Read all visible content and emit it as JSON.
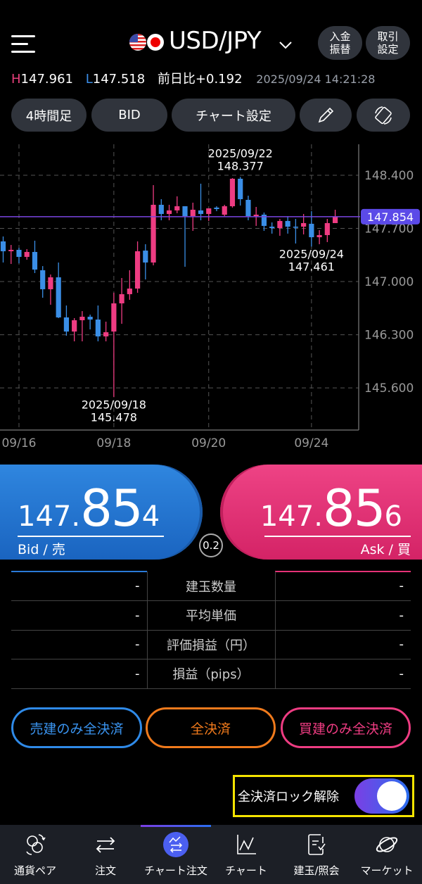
{
  "header": {
    "title": "USD/JPY",
    "deposit_label": "入金\n振替",
    "trade_settings_label": "取引\n設定",
    "flags": [
      "us-flag",
      "jp-flag"
    ]
  },
  "stats": {
    "high_label": "H",
    "high": "147.961",
    "low_label": "L",
    "low": "147.518",
    "change_label": "前日比",
    "change": "+0.192",
    "timestamp": "2025/09/24 14:21:28"
  },
  "toolbar": {
    "timeframe": "4時間足",
    "price_type": "BID",
    "chart_settings": "チャート設定",
    "draw_icon": "pencil-icon",
    "rotate_icon": "rotate-screen-icon"
  },
  "chart_data": {
    "type": "candlestick",
    "yticks": [
      "148.400",
      "147.700",
      "147.000",
      "146.300",
      "145.600"
    ],
    "ylim": [
      145.3,
      148.8
    ],
    "xticks": [
      {
        "index": 2,
        "label": "09/16"
      },
      {
        "index": 14,
        "label": "09/18"
      },
      {
        "index": 26,
        "label": "09/20"
      },
      {
        "index": 39,
        "label": "09/24"
      }
    ],
    "current_price": "147.854",
    "annotations": [
      {
        "index": 30,
        "date": "2025/09/22",
        "value": "148.377",
        "position": "above"
      },
      {
        "index": 14,
        "date": "2025/09/18",
        "value": "145.478",
        "position": "below"
      },
      {
        "index": 39,
        "date": "2025/09/24",
        "value": "147.461",
        "position": "below"
      }
    ],
    "colors": {
      "up": "#ee3c82",
      "down": "#3a8ee6",
      "current_line": "#7a45e0"
    },
    "ohlc": [
      [
        147.529,
        147.594,
        147.251,
        147.399
      ],
      [
        147.399,
        147.482,
        147.232,
        147.418
      ],
      [
        147.418,
        147.445,
        147.241,
        147.325
      ],
      [
        147.325,
        147.427,
        147.288,
        147.39
      ],
      [
        147.39,
        147.538,
        147.112,
        147.158
      ],
      [
        147.149,
        147.204,
        146.787,
        146.899
      ],
      [
        146.899,
        147.093,
        146.695,
        147.056
      ],
      [
        147.056,
        147.251,
        146.519,
        146.528
      ],
      [
        146.528,
        146.685,
        146.287,
        146.342
      ],
      [
        146.342,
        146.519,
        146.213,
        146.491
      ],
      [
        146.491,
        146.611,
        146.213,
        146.537
      ],
      [
        146.537,
        146.565,
        146.37,
        146.5
      ],
      [
        146.5,
        146.685,
        146.213,
        146.278
      ],
      [
        146.278,
        146.472,
        146.213,
        146.333
      ],
      [
        146.342,
        146.852,
        145.478,
        146.713
      ],
      [
        146.713,
        147.047,
        146.444,
        146.834
      ],
      [
        146.834,
        147.149,
        146.76,
        146.908
      ],
      [
        146.908,
        147.529,
        146.852,
        147.399
      ],
      [
        147.408,
        147.492,
        147.028,
        147.251
      ],
      [
        147.251,
        148.27,
        147.214,
        148.011
      ],
      [
        148.011,
        148.085,
        147.807,
        147.89
      ],
      [
        147.89,
        148.011,
        147.807,
        147.937
      ],
      [
        147.937,
        148.122,
        147.9,
        147.992
      ],
      [
        147.992,
        147.992,
        147.195,
        147.862
      ],
      [
        147.862,
        148.039,
        147.668,
        147.946
      ],
      [
        147.937,
        148.289,
        147.807,
        147.89
      ],
      [
        147.89,
        147.964,
        147.798,
        147.964
      ],
      [
        147.974,
        147.992,
        147.927,
        147.955
      ],
      [
        147.881,
        148.011,
        147.862,
        147.992
      ],
      [
        147.992,
        148.363,
        147.974,
        148.354
      ],
      [
        148.354,
        148.377,
        148.001,
        148.085
      ],
      [
        148.076,
        148.131,
        147.807,
        147.862
      ],
      [
        147.862,
        147.983,
        147.733,
        147.881
      ],
      [
        147.881,
        147.909,
        147.668,
        147.733
      ],
      [
        147.723,
        147.779,
        147.631,
        147.705
      ],
      [
        147.705,
        147.825,
        147.603,
        147.798
      ],
      [
        147.798,
        147.862,
        147.631,
        147.723
      ],
      [
        147.723,
        147.825,
        147.501,
        147.714
      ],
      [
        147.723,
        147.89,
        147.621,
        147.77
      ],
      [
        147.761,
        147.927,
        147.461,
        147.584
      ],
      [
        147.584,
        147.677,
        147.492,
        147.612
      ],
      [
        147.612,
        147.825,
        147.52,
        147.77
      ],
      [
        147.77,
        147.946,
        147.77,
        147.854
      ]
    ]
  },
  "bid": {
    "small": "147.",
    "big": "85",
    "last": "4",
    "label": "Bid / 売",
    "color": "#2a7ad8"
  },
  "ask": {
    "small": "147.",
    "big": "85",
    "last": "6",
    "label": "Ask / 買",
    "color": "#e63277"
  },
  "spread": "0.2",
  "positions": {
    "rows": [
      {
        "label": "建玉数量",
        "sell": "-",
        "buy": "-"
      },
      {
        "label": "平均単価",
        "sell": "-",
        "buy": "-"
      },
      {
        "label": "評価損益（円）",
        "sell": "-",
        "buy": "-"
      },
      {
        "label": "損益（pips）",
        "sell": "-",
        "buy": "-"
      }
    ]
  },
  "actions": {
    "close_sell": "売建のみ全決済",
    "close_all": "全決済",
    "close_buy": "買建のみ全決済"
  },
  "lock": {
    "label": "全決済ロック解除",
    "enabled": true
  },
  "nav": {
    "items": [
      {
        "label": "通貨ペア",
        "icon": "currency-pair-icon"
      },
      {
        "label": "注文",
        "icon": "order-icon"
      },
      {
        "label": "チャート注文",
        "icon": "chart-order-icon",
        "active": true
      },
      {
        "label": "チャート",
        "icon": "chart-icon"
      },
      {
        "label": "建玉/照会",
        "icon": "positions-icon"
      },
      {
        "label": "マーケット",
        "icon": "market-icon"
      }
    ]
  }
}
